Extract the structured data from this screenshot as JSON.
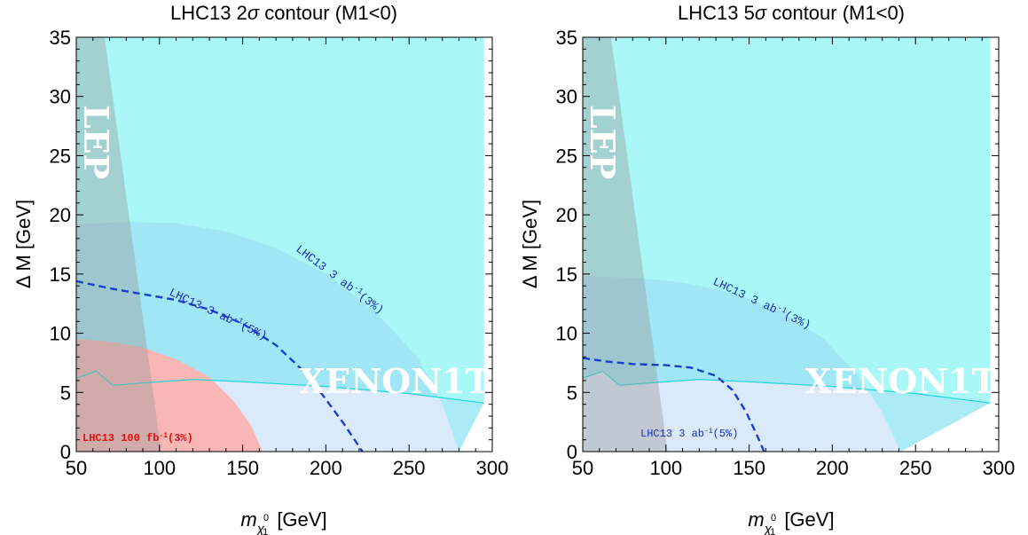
{
  "colors": {
    "xenon": "#a9f7f7",
    "xenon_line": "#1fd7d7",
    "hl_3pct": "#8ee4f3",
    "hl_5pct": "#9adff0",
    "hl_extension": "#dbeafb",
    "lhc100": "#f8b6b6",
    "lep": "#9a9a9a",
    "dashed": "#1a3fcf",
    "curve_label": "#1a2fb8",
    "red_label": "#e01010"
  },
  "chart_data": [
    {
      "type": "area",
      "title": "LHC13   2σ contour   (M1<0)",
      "title_parts": {
        "pre": "LHC13   2",
        "sigma": "σ",
        "post": " contour   (M1<0)"
      },
      "xlabel": {
        "symbol": "m",
        "sub1": "χ",
        "sup": "0",
        "sub2": "1",
        "unit": " [GeV]"
      },
      "ylabel": "Δ M [GeV]",
      "xlim": [
        50,
        300
      ],
      "ylim": [
        0,
        35
      ],
      "xticks": [
        50,
        100,
        150,
        200,
        250,
        300
      ],
      "yticks": [
        0,
        5,
        10,
        15,
        20,
        25,
        30,
        35
      ],
      "xtick_labels": [
        "50",
        "100",
        "150",
        "200",
        "250",
        "300"
      ],
      "ytick_labels": [
        "0",
        "5",
        "10",
        "15",
        "20",
        "25",
        "30",
        "35"
      ],
      "grid": false,
      "regions": {
        "xenon_boundary": [
          [
            50,
            6.2
          ],
          [
            62,
            6.8
          ],
          [
            72,
            5.6
          ],
          [
            90,
            5.8
          ],
          [
            120,
            6.1
          ],
          [
            150,
            5.9
          ],
          [
            200,
            5.5
          ],
          [
            250,
            4.9
          ],
          [
            295,
            4.1
          ]
        ],
        "xenon_xmax": 295,
        "hl_3pct": [
          [
            50,
            19.2
          ],
          [
            80,
            19.4
          ],
          [
            110,
            19.3
          ],
          [
            140,
            18.6
          ],
          [
            170,
            17.2
          ],
          [
            200,
            15.0
          ],
          [
            230,
            11.8
          ],
          [
            255,
            8.0
          ],
          [
            270,
            4.0
          ],
          [
            280,
            0
          ]
        ],
        "lhc100": [
          [
            50,
            9.5
          ],
          [
            70,
            9.3
          ],
          [
            90,
            8.8
          ],
          [
            110,
            7.8
          ],
          [
            130,
            6.3
          ],
          [
            145,
            4.2
          ],
          [
            155,
            2.2
          ],
          [
            162,
            0
          ]
        ],
        "lep": [
          [
            50,
            35
          ],
          [
            67,
            35
          ],
          [
            101,
            0
          ],
          [
            50,
            0
          ]
        ]
      },
      "dashed_5pct": [
        [
          50,
          14.4
        ],
        [
          70,
          13.8
        ],
        [
          90,
          13.3
        ],
        [
          110,
          12.8
        ],
        [
          130,
          12.0
        ],
        [
          150,
          10.8
        ],
        [
          170,
          9.0
        ],
        [
          185,
          7.0
        ],
        [
          198,
          4.8
        ],
        [
          210,
          2.5
        ],
        [
          222,
          0
        ]
      ],
      "labels": {
        "lep": "LEP",
        "xenon": "XENON1T",
        "curve_3pct": {
          "pre": "LHC13  3  ab",
          "sup": "-1",
          "post": "(3%)"
        },
        "curve_5pct": {
          "pre": "LHC13  3  ab",
          "sup": "-1",
          "post": "(5%)"
        },
        "lhc100": {
          "pre": "LHC13 100  fb",
          "sup": "-1",
          "post": "(3%)"
        }
      }
    },
    {
      "type": "area",
      "title": "LHC13   5σ contour   (M1<0)",
      "title_parts": {
        "pre": "LHC13   5",
        "sigma": "σ",
        "post": " contour   (M1<0)"
      },
      "xlabel": {
        "symbol": "m",
        "sub1": "χ",
        "sup": "0",
        "sub2": "1",
        "unit": " [GeV]"
      },
      "ylabel": "Δ M [GeV]",
      "xlim": [
        50,
        300
      ],
      "ylim": [
        0,
        35
      ],
      "xticks": [
        50,
        100,
        150,
        200,
        250,
        300
      ],
      "yticks": [
        0,
        5,
        10,
        15,
        20,
        25,
        30,
        35
      ],
      "xtick_labels": [
        "50",
        "100",
        "150",
        "200",
        "250",
        "300"
      ],
      "ytick_labels": [
        "0",
        "5",
        "10",
        "15",
        "20",
        "25",
        "30",
        "35"
      ],
      "grid": false,
      "regions": {
        "xenon_boundary": [
          [
            50,
            6.2
          ],
          [
            62,
            6.8
          ],
          [
            72,
            5.6
          ],
          [
            90,
            5.8
          ],
          [
            120,
            6.1
          ],
          [
            150,
            5.9
          ],
          [
            200,
            5.5
          ],
          [
            250,
            4.9
          ],
          [
            295,
            4.1
          ]
        ],
        "xenon_xmax": 295,
        "hl_3pct": [
          [
            50,
            14.8
          ],
          [
            80,
            14.7
          ],
          [
            110,
            14.3
          ],
          [
            140,
            13.4
          ],
          [
            170,
            11.8
          ],
          [
            195,
            9.5
          ],
          [
            215,
            6.5
          ],
          [
            230,
            3.3
          ],
          [
            241,
            0
          ]
        ],
        "lep": [
          [
            50,
            35
          ],
          [
            67,
            35
          ],
          [
            101,
            0
          ],
          [
            50,
            0
          ]
        ]
      },
      "dashed_5pct": [
        [
          50,
          7.9
        ],
        [
          65,
          7.6
        ],
        [
          80,
          7.4
        ],
        [
          100,
          7.3
        ],
        [
          115,
          7.1
        ],
        [
          130,
          6.4
        ],
        [
          140,
          5.2
        ],
        [
          148,
          3.4
        ],
        [
          154,
          1.6
        ],
        [
          159,
          0
        ]
      ],
      "labels": {
        "lep": "LEP",
        "xenon": "XENON1T",
        "curve_3pct": {
          "pre": "LHC13  3  ab",
          "sup": "-1",
          "post": "(3%)"
        },
        "curve_5pct": {
          "pre": "LHC13  3  ab",
          "sup": "-1",
          "post": "(5%)"
        }
      }
    }
  ]
}
